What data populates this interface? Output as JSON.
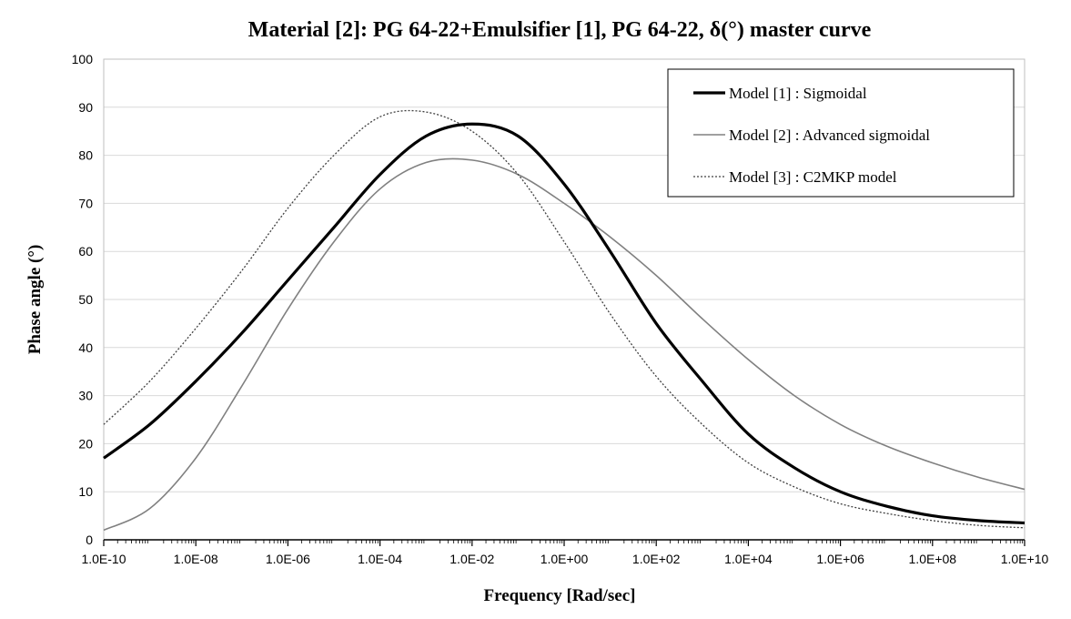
{
  "chart_data": {
    "type": "line",
    "title": "Material [2]: PG 64-22+Emulsifier [1], PG 64-22, δ(°) master curve",
    "xlabel": "Frequency [Rad/sec]",
    "ylabel": "Phase angle (°)",
    "x_scale": "log",
    "xlim": [
      1e-10,
      10000000000.0
    ],
    "ylim": [
      0,
      100
    ],
    "x_ticks": [
      1e-10,
      1e-08,
      1e-06,
      0.0001,
      0.01,
      1.0,
      100.0,
      10000.0,
      1000000.0,
      100000000.0,
      10000000000.0
    ],
    "x_tick_labels": [
      "1.0E-10",
      "1.0E-08",
      "1.0E-06",
      "1.0E-04",
      "1.0E-02",
      "1.0E+00",
      "1.0E+02",
      "1.0E+04",
      "1.0E+06",
      "1.0E+08",
      "1.0E+10"
    ],
    "y_ticks": [
      0,
      10,
      20,
      30,
      40,
      50,
      60,
      70,
      80,
      90,
      100
    ],
    "y_tick_labels": [
      "0",
      "10",
      "20",
      "30",
      "40",
      "50",
      "60",
      "70",
      "80",
      "90",
      "100"
    ],
    "grid": "horizontal",
    "legend_position": "top-right",
    "x": [
      1e-10,
      1e-09,
      1e-08,
      1e-07,
      1e-06,
      1e-05,
      0.0001,
      0.001,
      0.01,
      0.1,
      1.0,
      10.0,
      100.0,
      1000.0,
      10000.0,
      100000.0,
      1000000.0,
      10000000.0,
      100000000.0,
      1000000000.0,
      10000000000.0
    ],
    "series": [
      {
        "name": "Model [1] : Sigmoidal",
        "color": "#000000",
        "style": "solid-thick",
        "values": [
          17,
          24,
          33,
          43,
          54,
          65,
          76,
          84,
          86.5,
          84,
          74,
          60,
          45,
          33,
          22,
          15,
          10,
          7,
          5,
          4,
          3.5
        ]
      },
      {
        "name": "Model [2] : Advanced sigmoidal",
        "color": "#808080",
        "style": "solid",
        "values": [
          2,
          6.5,
          17,
          32,
          48,
          62,
          73,
          78.5,
          79,
          76,
          70,
          63,
          55,
          46,
          37.5,
          30,
          24,
          19.5,
          16,
          13,
          10.5
        ]
      },
      {
        "name": "Model [3] : C2MKP model",
        "color": "#404040",
        "style": "dotted",
        "values": [
          24,
          33,
          44,
          56,
          69,
          80,
          88,
          89,
          85,
          76,
          62,
          47,
          34,
          24,
          16,
          11,
          7.5,
          5.5,
          4,
          3,
          2.5
        ]
      }
    ]
  }
}
